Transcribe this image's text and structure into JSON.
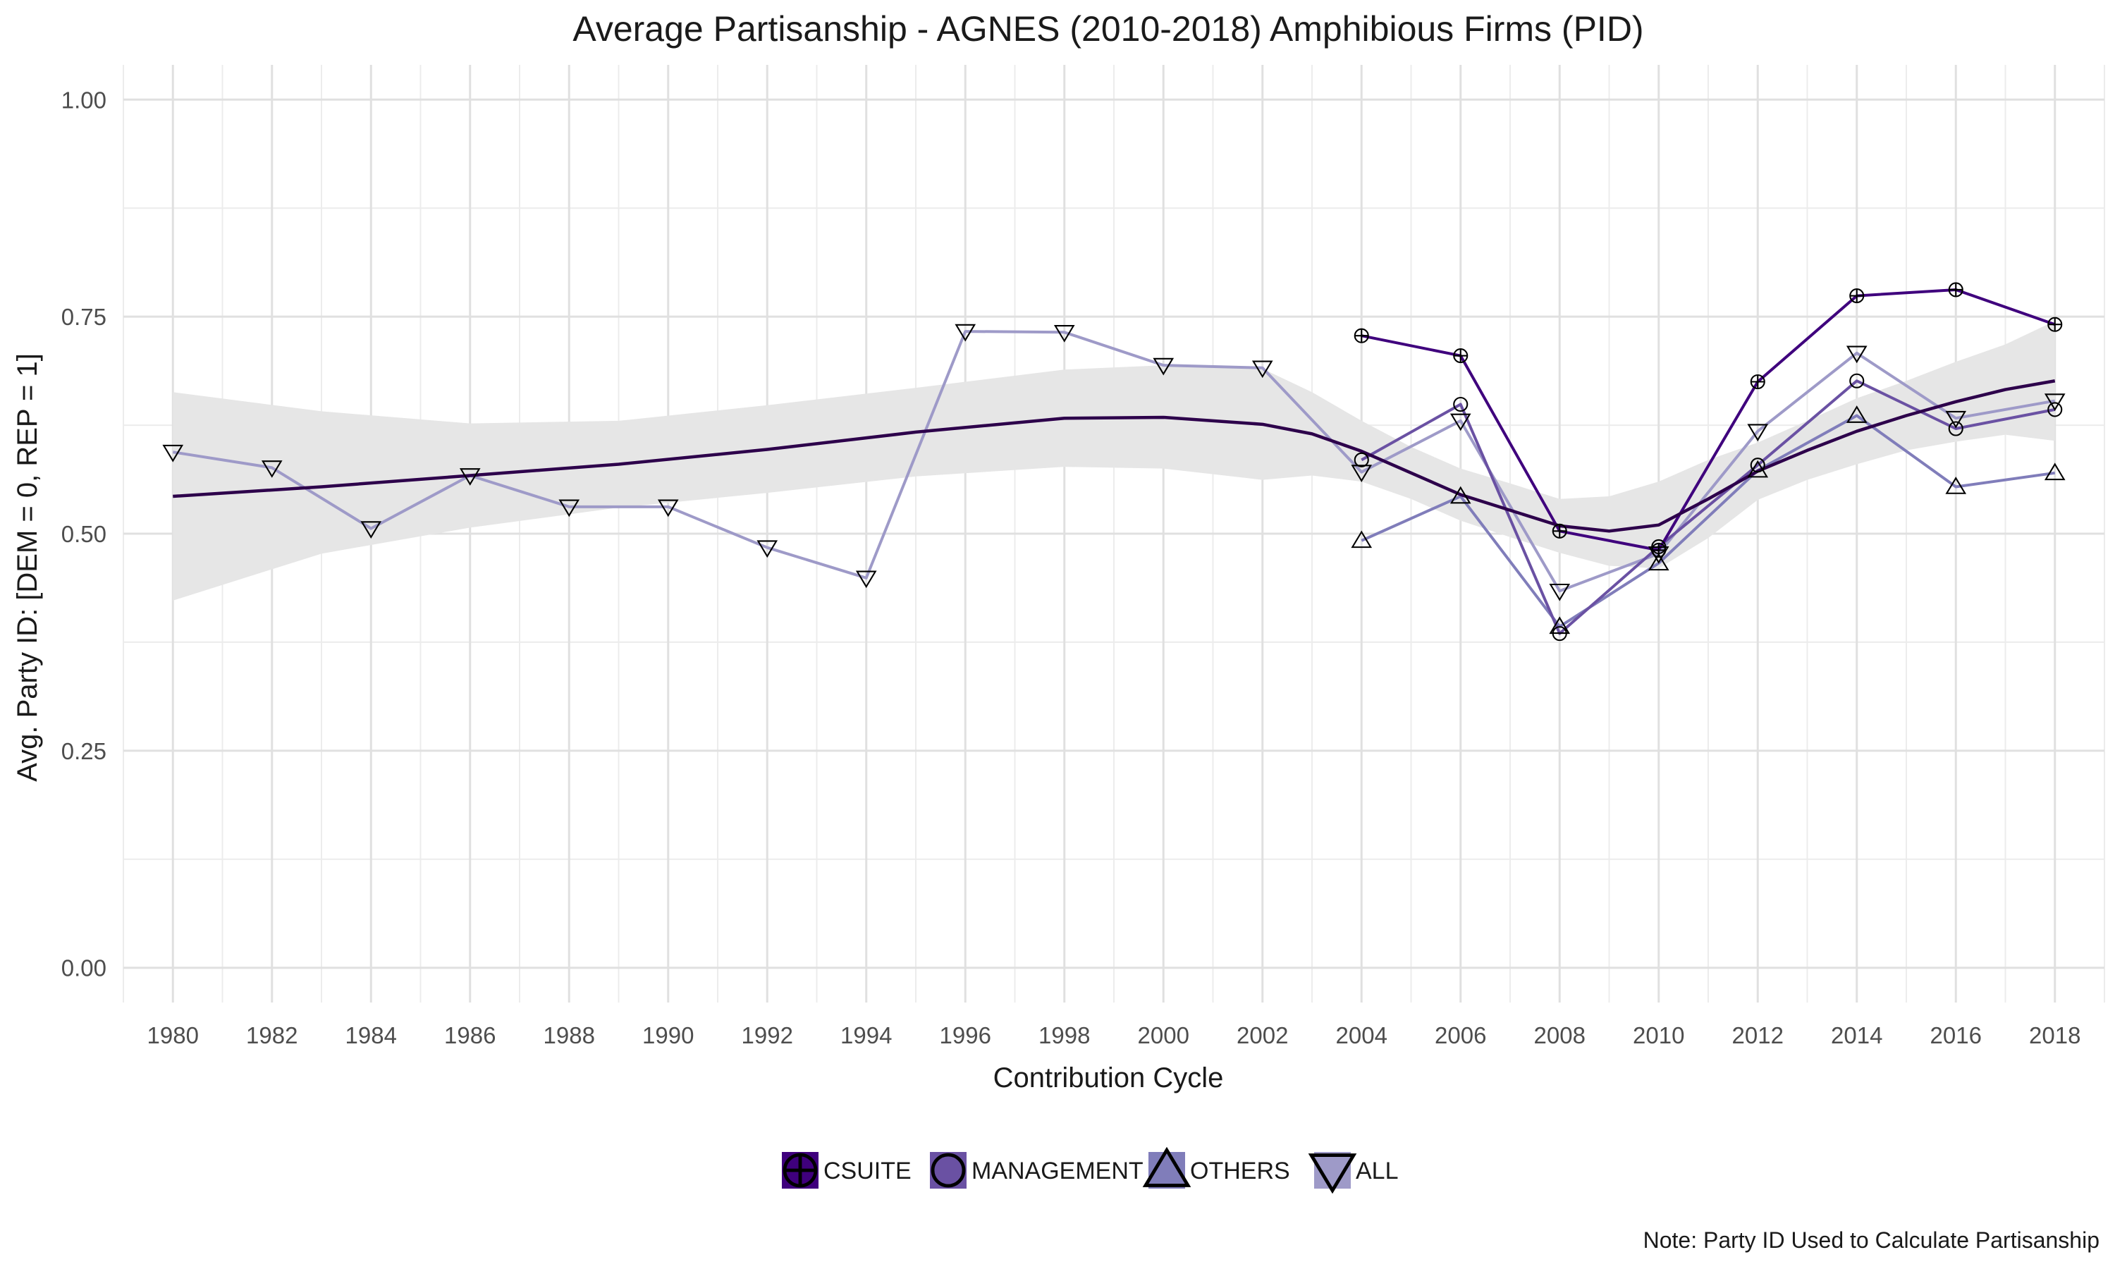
{
  "chart_data": {
    "type": "line",
    "title": "Average Partisanship - AGNES (2010-2018) Amphibious Firms (PID)",
    "xlabel": "Contribution Cycle",
    "ylabel": "Avg. Party ID: [DEM = 0, REP = 1]",
    "caption": "Note: Party ID Used to Calculate Partisanship",
    "xlim": [
      1979,
      2019
    ],
    "ylim": [
      -0.04,
      1.04
    ],
    "x_ticks": [
      1980,
      1982,
      1984,
      1986,
      1988,
      1990,
      1992,
      1994,
      1996,
      1998,
      2000,
      2002,
      2004,
      2006,
      2008,
      2010,
      2012,
      2014,
      2016,
      2018
    ],
    "y_ticks": [
      0.0,
      0.25,
      0.5,
      0.75,
      1.0
    ],
    "y_tick_labels": [
      "0.00",
      "0.25",
      "0.50",
      "0.75",
      "1.00"
    ],
    "grid": true,
    "legend_position": "bottom",
    "series": [
      {
        "name": "CSUITE",
        "color": "#3f007d",
        "marker": "circle-plus",
        "x": [
          2004,
          2006,
          2008,
          2010,
          2012,
          2014,
          2016,
          2018
        ],
        "y": [
          0.728,
          0.705,
          0.503,
          0.481,
          0.675,
          0.774,
          0.781,
          0.741
        ]
      },
      {
        "name": "MANAGEMENT",
        "color": "#6a51a3",
        "marker": "circle",
        "x": [
          2004,
          2006,
          2008,
          2010,
          2012,
          2014,
          2016,
          2018
        ],
        "y": [
          0.585,
          0.649,
          0.385,
          0.485,
          0.579,
          0.676,
          0.621,
          0.643
        ]
      },
      {
        "name": "OTHERS",
        "color": "#807dba",
        "marker": "triangle-up",
        "x": [
          2004,
          2006,
          2008,
          2010,
          2012,
          2014,
          2016,
          2018
        ],
        "y": [
          0.492,
          0.543,
          0.393,
          0.466,
          0.573,
          0.636,
          0.554,
          0.57
        ]
      },
      {
        "name": "ALL",
        "color": "#9e9ac8",
        "marker": "triangle-down",
        "x": [
          1980,
          1982,
          1984,
          1986,
          1988,
          1990,
          1992,
          1994,
          1996,
          1998,
          2000,
          2002,
          2004,
          2006,
          2008,
          2010,
          2012,
          2014,
          2016,
          2018
        ],
        "y": [
          0.594,
          0.576,
          0.506,
          0.567,
          0.531,
          0.531,
          0.484,
          0.449,
          0.733,
          0.732,
          0.694,
          0.691,
          0.571,
          0.63,
          0.434,
          0.477,
          0.618,
          0.708,
          0.633,
          0.653
        ]
      }
    ],
    "smooth": {
      "color": "#2d004b",
      "band_color": "#e6e6e6",
      "x": [
        1980,
        1983,
        1986,
        1989,
        1992,
        1995,
        1998,
        2000,
        2002,
        2003,
        2004,
        2005,
        2006,
        2007,
        2008,
        2009,
        2010,
        2011,
        2012,
        2013,
        2014,
        2015,
        2016,
        2017,
        2018
      ],
      "y": [
        0.543,
        0.554,
        0.567,
        0.58,
        0.597,
        0.617,
        0.633,
        0.634,
        0.626,
        0.615,
        0.595,
        0.57,
        0.545,
        0.527,
        0.509,
        0.503,
        0.51,
        0.54,
        0.572,
        0.596,
        0.618,
        0.636,
        0.652,
        0.666,
        0.676
      ],
      "upper": [
        0.663,
        0.641,
        0.627,
        0.63,
        0.648,
        0.668,
        0.689,
        0.694,
        0.69,
        0.663,
        0.63,
        0.6,
        0.575,
        0.558,
        0.54,
        0.543,
        0.56,
        0.585,
        0.605,
        0.63,
        0.656,
        0.676,
        0.698,
        0.718,
        0.745
      ],
      "lower": [
        0.423,
        0.477,
        0.507,
        0.53,
        0.547,
        0.566,
        0.577,
        0.575,
        0.562,
        0.567,
        0.56,
        0.54,
        0.515,
        0.496,
        0.478,
        0.463,
        0.46,
        0.495,
        0.539,
        0.562,
        0.58,
        0.596,
        0.606,
        0.614,
        0.607
      ]
    }
  }
}
